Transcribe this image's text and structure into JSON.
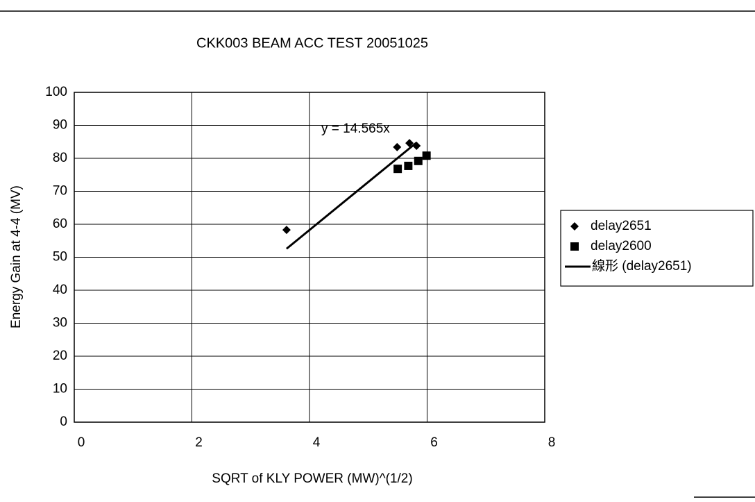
{
  "chart_data": {
    "type": "scatter",
    "title": "CKK003 BEAM ACC TEST 20051025",
    "x_label": "SQRT of KLY POWER (MW)^(1/2)",
    "y_label": "Energy Gain at 4-4 (MV)",
    "xlim": [
      0,
      8
    ],
    "xticks": [
      0,
      2,
      4,
      6,
      8
    ],
    "ylim": [
      0,
      100
    ],
    "yticks": [
      0,
      10,
      20,
      30,
      40,
      50,
      60,
      70,
      80,
      90,
      100
    ],
    "grid": true,
    "legend": "right",
    "series": [
      {
        "name": "delay2651",
        "color": "#000000",
        "marker": "diamond",
        "x": [
          3.61,
          5.49,
          5.7,
          5.82
        ],
        "values": [
          58.3,
          83.4,
          84.6,
          83.8
        ]
      },
      {
        "name": "delay2600",
        "color": "#000000",
        "marker": "square",
        "x": [
          5.5,
          5.68,
          5.85,
          5.99
        ],
        "values": [
          76.8,
          77.7,
          79.2,
          80.8
        ]
      }
    ],
    "trendline": {
      "name": "線形 (delay2651)",
      "label": "y = 14.565x",
      "slope": 14.565,
      "color": "#000000"
    }
  }
}
